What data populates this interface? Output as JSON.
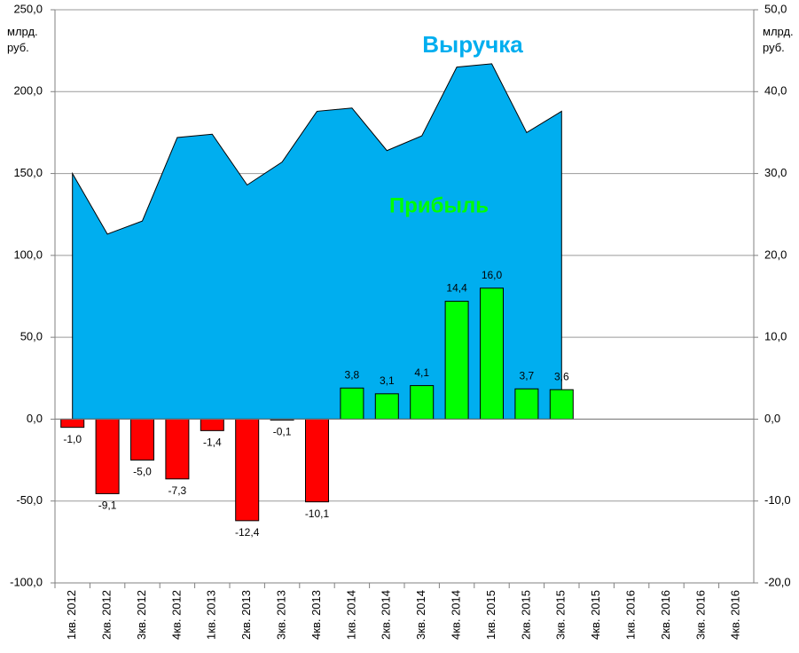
{
  "chart_data": {
    "type": "area_bar",
    "categories": [
      "1кв. 2012",
      "2кв. 2012",
      "3кв. 2012",
      "4кв. 2012",
      "1кв. 2013",
      "2кв. 2013",
      "3кв. 2013",
      "4кв. 2013",
      "1кв. 2014",
      "2кв. 2014",
      "3кв. 2014",
      "4кв. 2014",
      "1кв. 2015",
      "2кв. 2015",
      "3кв. 2015",
      "4кв. 2015",
      "1кв. 2016",
      "2кв. 2016",
      "3кв. 2016",
      "4кв. 2016"
    ],
    "y_label": "млрд. руб.",
    "y2_label": "млрд. руб.",
    "series": [
      {
        "name": "Выручка",
        "type": "area",
        "color": "#00aeef",
        "values": [
          150,
          113,
          121,
          172,
          174,
          143,
          157,
          188,
          190,
          164,
          173,
          215,
          217,
          175,
          188,
          null,
          null,
          null,
          null,
          null
        ]
      },
      {
        "name": "Прибыль",
        "type": "bar",
        "axis": "y2",
        "color": "#00ff00",
        "negative_color": "#ff0000",
        "values": [
          -1.0,
          -9.1,
          -5.0,
          -7.3,
          -1.4,
          -12.4,
          -0.1,
          -10.1,
          3.8,
          3.1,
          4.1,
          14.4,
          16.0,
          3.7,
          3.6,
          null,
          null,
          null,
          null,
          null
        ],
        "value_labels": [
          "-1,0",
          "-9,1",
          "-5,0",
          "-7,3",
          "-1,4",
          "-12,4",
          "-0,1",
          "-10,1",
          "3,8",
          "3,1",
          "4,1",
          "14,4",
          "16,0",
          "3,7",
          "3,6",
          null,
          null,
          null,
          null,
          null
        ]
      }
    ],
    "ylim": [
      -100,
      250
    ],
    "yticks": [
      {
        "value": -100,
        "label": "-100,0"
      },
      {
        "value": -50,
        "label": "-50,0"
      },
      {
        "value": 0,
        "label": "0,0"
      },
      {
        "value": 50,
        "label": "50,0"
      },
      {
        "value": 100,
        "label": "100,0"
      },
      {
        "value": 150,
        "label": "150,0"
      },
      {
        "value": 200,
        "label": "200,0"
      },
      {
        "value": 250,
        "label": "250,0"
      }
    ],
    "y2lim": [
      -20,
      50
    ],
    "y2ticks": [
      {
        "value": -20,
        "label": "-20,0"
      },
      {
        "value": -10,
        "label": "-10,0"
      },
      {
        "value": 0,
        "label": "0,0"
      },
      {
        "value": 10,
        "label": "10,0"
      },
      {
        "value": 20,
        "label": "20,0"
      },
      {
        "value": 30,
        "label": "30,0"
      },
      {
        "value": 40,
        "label": "40,0"
      },
      {
        "value": 50,
        "label": "50,0"
      }
    ],
    "grid": true
  }
}
